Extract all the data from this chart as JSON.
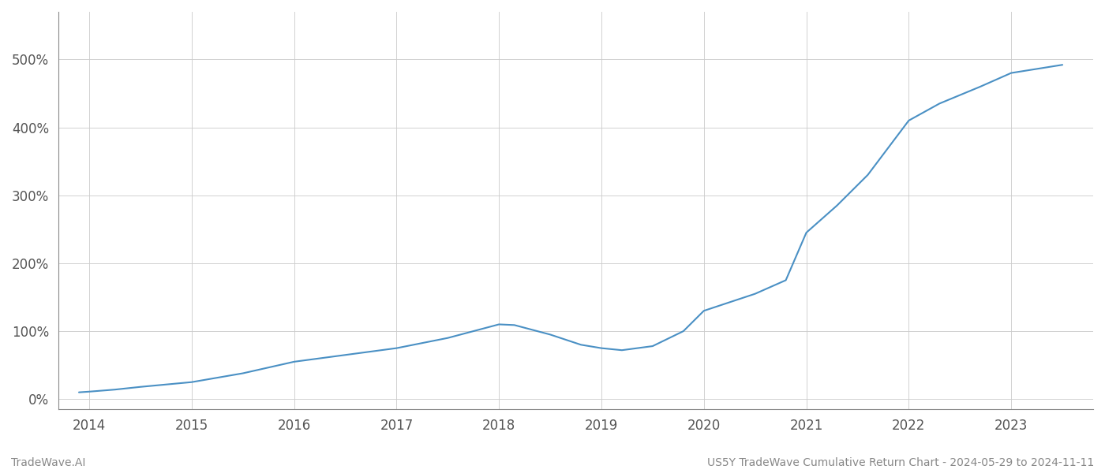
{
  "title": "US5Y TradeWave Cumulative Return Chart - 2024-05-29 to 2024-11-11",
  "footer_left": "TradeWave.AI",
  "footer_right": "US5Y TradeWave Cumulative Return Chart - 2024-05-29 to 2024-11-11",
  "line_color": "#4a90c4",
  "background_color": "#ffffff",
  "grid_color": "#cccccc",
  "x_values": [
    2013.9,
    2014.0,
    2014.25,
    2014.5,
    2015.0,
    2015.5,
    2016.0,
    2016.5,
    2017.0,
    2017.5,
    2018.0,
    2018.15,
    2018.5,
    2018.8,
    2019.0,
    2019.2,
    2019.5,
    2019.8,
    2020.0,
    2020.2,
    2020.5,
    2020.8,
    2021.0,
    2021.3,
    2021.6,
    2022.0,
    2022.3,
    2022.7,
    2023.0,
    2023.5
  ],
  "y_values": [
    10,
    11,
    14,
    18,
    25,
    38,
    55,
    65,
    75,
    90,
    110,
    109,
    95,
    80,
    75,
    72,
    78,
    100,
    130,
    140,
    155,
    175,
    245,
    285,
    330,
    410,
    435,
    460,
    480,
    492
  ],
  "xlim": [
    2013.7,
    2023.8
  ],
  "ylim": [
    -15,
    570
  ],
  "yticks": [
    0,
    100,
    200,
    300,
    400,
    500
  ],
  "ytick_labels": [
    "0%",
    "100%",
    "200%",
    "300%",
    "400%",
    "500%"
  ],
  "xticks": [
    2014,
    2015,
    2016,
    2017,
    2018,
    2019,
    2020,
    2021,
    2022,
    2023
  ],
  "xtick_labels": [
    "2014",
    "2015",
    "2016",
    "2017",
    "2018",
    "2019",
    "2020",
    "2021",
    "2022",
    "2023"
  ],
  "figsize": [
    14,
    6
  ],
  "dpi": 100
}
